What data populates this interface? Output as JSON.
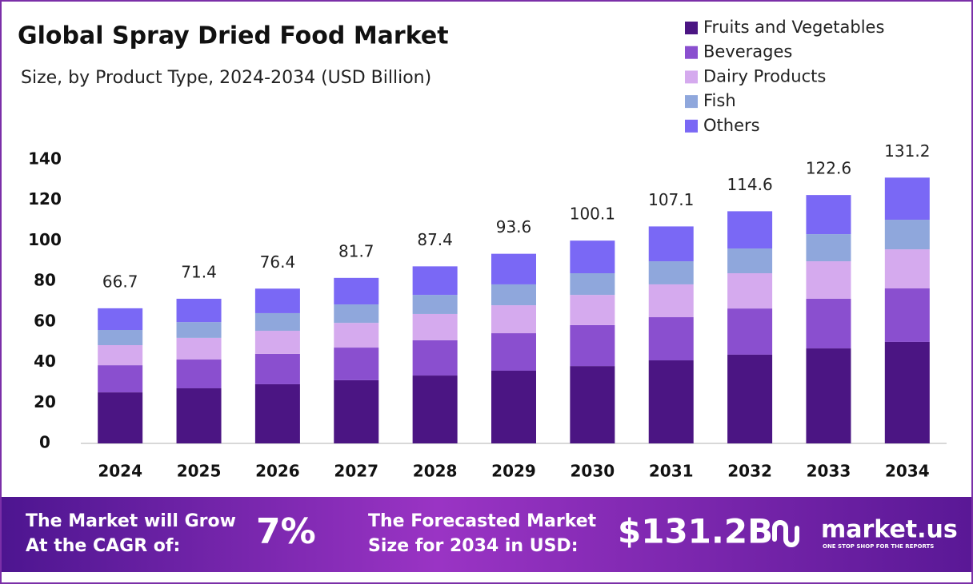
{
  "chart_data": {
    "type": "stacked_bar",
    "title": "Global Spray Dried Food Market",
    "subtitle": "Size, by Product Type, 2024-2034 (USD Billion)",
    "categories": [
      "2024",
      "2025",
      "2026",
      "2027",
      "2028",
      "2029",
      "2030",
      "2031",
      "2032",
      "2033",
      "2034"
    ],
    "series": [
      {
        "name": "Fruits and Vegetables",
        "color": "#4b1583",
        "values": [
          25.2,
          27.2,
          29.2,
          31.2,
          33.5,
          35.9,
          38.2,
          41.0,
          43.8,
          46.9,
          50.1
        ]
      },
      {
        "name": "Beverages",
        "color": "#8a4fcf",
        "values": [
          13.4,
          14.2,
          15.0,
          16.1,
          17.4,
          18.5,
          20.2,
          21.3,
          22.8,
          24.5,
          26.4
        ]
      },
      {
        "name": "Dairy Products",
        "color": "#d5aaee",
        "values": [
          9.9,
          10.7,
          11.4,
          12.2,
          13.0,
          13.8,
          14.9,
          16.2,
          17.4,
          18.5,
          19.3
        ]
      },
      {
        "name": "Fish",
        "color": "#8fa7dc",
        "values": [
          7.5,
          7.8,
          8.7,
          9.1,
          9.4,
          10.3,
          10.7,
          11.4,
          12.2,
          13.4,
          14.6
        ]
      },
      {
        "name": "Others",
        "color": "#7a68f5",
        "values": [
          10.7,
          11.5,
          12.1,
          13.1,
          14.1,
          15.1,
          16.1,
          17.2,
          18.4,
          19.3,
          20.8
        ]
      }
    ],
    "totals": [
      66.7,
      71.4,
      76.4,
      81.7,
      87.4,
      93.6,
      100.1,
      107.1,
      114.6,
      122.6,
      131.2
    ],
    "ylim": [
      0,
      140
    ],
    "yticks": [
      0,
      20,
      40,
      60,
      80,
      100,
      120,
      140
    ],
    "grid": false
  },
  "footer": {
    "cagr_text": [
      "The Market will Grow",
      "At the CAGR of:"
    ],
    "cagr_value": "7%",
    "forecast_text": [
      "The Forecasted Market",
      "Size for 2034 in USD:"
    ],
    "forecast_value": "$131.2B",
    "brand": "market.us",
    "tagline": "ONE STOP SHOP FOR THE REPORTS"
  }
}
